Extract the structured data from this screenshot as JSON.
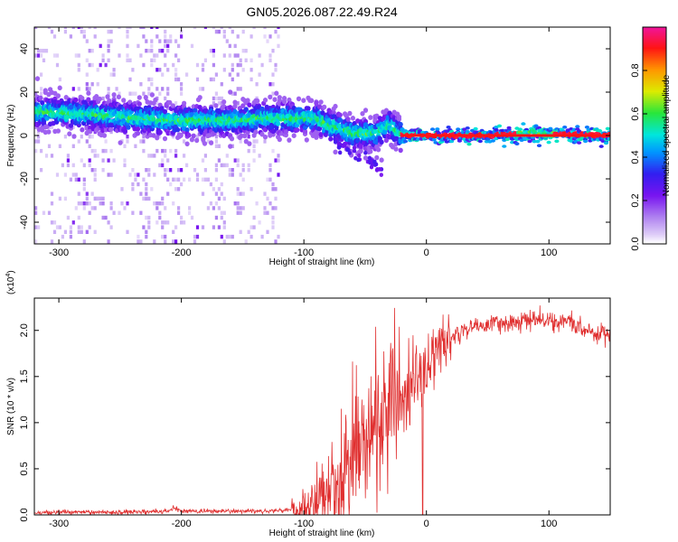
{
  "title": "GN05.2026.087.22.49.R24",
  "chart_data": [
    {
      "type": "heatmap",
      "xlabel": "Height of straight line (km)",
      "ylabel": "Frequency (Hz)",
      "xlim": [
        -320,
        150
      ],
      "ylim": [
        -50,
        50
      ],
      "xticks": [
        -300,
        -200,
        -100,
        0,
        100
      ],
      "yticks": [
        -40,
        -20,
        0,
        20,
        40
      ],
      "colorbar": {
        "label": "Normalized spectral amplitude",
        "range": [
          0,
          1
        ],
        "ticks": [
          "0.0",
          "0.2",
          "0.4",
          "0.6",
          "0.8"
        ],
        "tick_values": [
          0.0,
          0.2,
          0.4,
          0.6,
          0.8
        ],
        "colormap": "rainbow (white-lavender-purple-blue-cyan-green-yellow-orange-red-magenta)"
      },
      "ridge": {
        "description": "dominant frequency vs height",
        "points": [
          [
            -320,
            11
          ],
          [
            -280,
            10
          ],
          [
            -240,
            8
          ],
          [
            -200,
            7
          ],
          [
            -160,
            7
          ],
          [
            -130,
            8
          ],
          [
            -110,
            8
          ],
          [
            -90,
            8
          ],
          [
            -80,
            5
          ],
          [
            -70,
            3
          ],
          [
            -60,
            1
          ],
          [
            -40,
            1
          ],
          [
            -30,
            5
          ],
          [
            -20,
            0
          ],
          [
            0,
            0
          ],
          [
            50,
            0
          ],
          [
            90,
            1
          ],
          [
            150,
            0
          ]
        ]
      },
      "noise_region_x": [
        -320,
        -120
      ]
    },
    {
      "type": "line",
      "xlabel": "Height of straight line (km)",
      "ylabel": "SNR (10 * v/v)",
      "scale_label": "(x10",
      "scale_exp": "4",
      "scale_close": ")",
      "xlim": [
        -320,
        150
      ],
      "ylim": [
        0,
        2.35
      ],
      "xticks": [
        -300,
        -200,
        -100,
        0,
        100
      ],
      "yticks": [
        "0.0",
        "0.5",
        "1.0",
        "1.5",
        "2.0"
      ],
      "ytick_values": [
        0.0,
        0.5,
        1.0,
        1.5,
        2.0
      ],
      "series": [
        {
          "color": "#e03030",
          "x": [
            -320,
            -300,
            -250,
            -210,
            -205,
            -200,
            -150,
            -110,
            -100,
            -90,
            -80,
            -70,
            -60,
            -50,
            -40,
            -30,
            -20,
            -10,
            0,
            10,
            20,
            30,
            40,
            60,
            80,
            95,
            110,
            117,
            130,
            150
          ],
          "y": [
            0.02,
            0.03,
            0.03,
            0.04,
            0.08,
            0.04,
            0.04,
            0.05,
            0.07,
            0.12,
            0.2,
            0.35,
            0.55,
            0.75,
            0.9,
            1.05,
            1.2,
            1.4,
            1.6,
            1.8,
            1.92,
            2.0,
            2.05,
            2.08,
            2.1,
            2.12,
            2.08,
            2.1,
            2.0,
            1.95
          ]
        }
      ]
    }
  ]
}
